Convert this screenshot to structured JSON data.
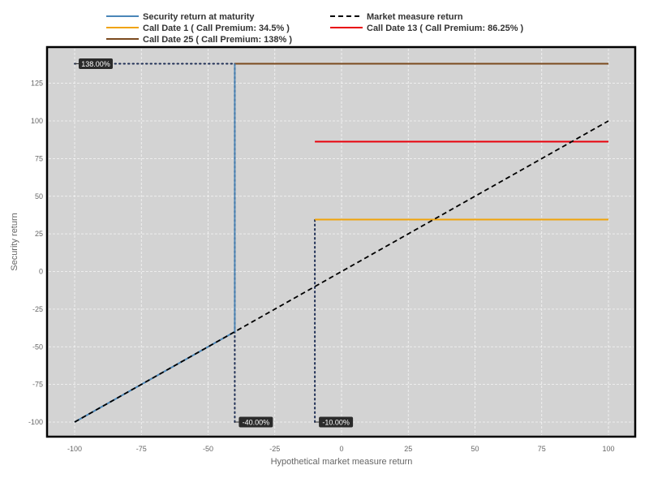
{
  "chart_data": {
    "type": "line",
    "xlabel": "Hypothetical market measure return",
    "ylabel": "Security return",
    "xlim": [
      -105,
      105
    ],
    "ylim": [
      -110,
      142
    ],
    "xticks": [
      -100,
      -75,
      -50,
      -25,
      0,
      25,
      50,
      75,
      100
    ],
    "yticks": [
      -100,
      -75,
      -50,
      -25,
      0,
      25,
      50,
      75,
      100,
      125
    ],
    "grid": true,
    "legend_position": "top",
    "background": "#d3d3d3",
    "series": [
      {
        "name": "Security return at maturity",
        "color": "#4a86b8",
        "style": "solid",
        "x": [
          -100,
          -40
        ],
        "y": [
          -100,
          -40
        ]
      },
      {
        "name": "Market measure return",
        "color": "#000000",
        "style": "dashed",
        "x": [
          -100,
          100
        ],
        "y": [
          -100,
          100
        ]
      },
      {
        "name": "Call Date 1 ( Call Premium: 34.5% )",
        "color": "#f0a30a",
        "style": "solid",
        "x": [
          -10,
          100
        ],
        "y": [
          34.5,
          34.5
        ]
      },
      {
        "name": "Call Date 13 ( Call Premium: 86.25% )",
        "color": "#e8000b",
        "style": "solid",
        "x": [
          -10,
          100
        ],
        "y": [
          86.25,
          86.25
        ]
      },
      {
        "name": "Call Date 25 ( Call Premium: 138% )",
        "color": "#7b4a1e",
        "style": "solid",
        "x": [
          -40,
          100
        ],
        "y": [
          138,
          138
        ]
      }
    ],
    "vertical_connector": {
      "x": -40,
      "y": [
        -40,
        138
      ],
      "color": "#4a86b8"
    },
    "dotted_guides": [
      {
        "from": [
          -40,
          -100
        ],
        "to": [
          -40,
          138
        ]
      },
      {
        "from": [
          -10,
          -100
        ],
        "to": [
          -10,
          34.5
        ]
      },
      {
        "from": [
          -100,
          138
        ],
        "to": [
          -40,
          138
        ]
      }
    ],
    "annotations": [
      {
        "text": "138.00%",
        "x": -100,
        "y": 138
      },
      {
        "text": "-40.00%",
        "x": -40,
        "y": -100
      },
      {
        "text": "-10.00%",
        "x": -10,
        "y": -100
      }
    ]
  }
}
